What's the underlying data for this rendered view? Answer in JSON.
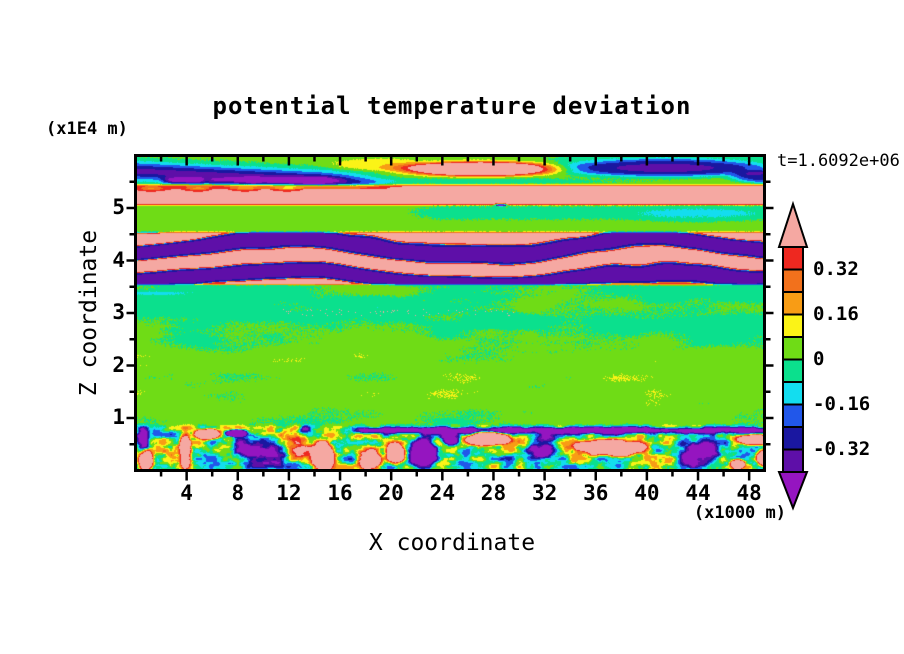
{
  "chart_data": {
    "type": "heatmap",
    "title": "potential temperature deviation",
    "time_label": "t=1.6092e+06",
    "xlabel": "X coordinate",
    "ylabel": "Z coordinate",
    "x_unit_label": "(x1000 m)",
    "y_unit_label": "(x1E4 m)",
    "x_range": [
      0,
      49.2
    ],
    "z_range": [
      0,
      6
    ],
    "x_ticks": [
      4,
      8,
      12,
      16,
      20,
      24,
      28,
      32,
      36,
      40,
      44,
      48
    ],
    "x_minor_ticks": [
      2,
      6,
      10,
      14,
      18,
      22,
      26,
      30,
      34,
      38,
      42,
      46
    ],
    "z_ticks": [
      1,
      2,
      3,
      4,
      5
    ],
    "z_minor_ticks": [
      0.5,
      1.5,
      2.5,
      3.5,
      4.5,
      5.5
    ],
    "levels": [
      -0.4,
      -0.32,
      -0.24,
      -0.16,
      -0.08,
      0,
      0.08,
      0.16,
      0.24,
      0.32,
      0.4
    ],
    "colorbar_labels": [
      "0.32",
      "0.16",
      "0",
      "-0.16",
      "-0.32"
    ],
    "palette": [
      "#9515C0",
      "#5E0FA8",
      "#1A17A0",
      "#2157EA",
      "#13DDEF",
      "#0BE08D",
      "#6FDC16",
      "#FBF317",
      "#F89C15",
      "#F2711C",
      "#EE2820",
      "#F5A8A2"
    ],
    "field": {
      "seed": 13,
      "dither_amp": 0.03,
      "dither_gate": 0.1,
      "mid": {
        "base": 0.0,
        "amp": 0.13,
        "sx": 0.15,
        "sz": 3.0,
        "bias_pos": {
          "amp": 0.04,
          "zc": 1.8,
          "zw": 0.8
        },
        "bias_neg": {
          "amp": -0.025,
          "zc": 3.0,
          "zw": 0.45
        },
        "specks": {
          "z": [
            2.94,
            3.08
          ],
          "x": [
            11,
            30
          ],
          "p": 0.03,
          "amp": 0.5
        },
        "cyan_streak": {
          "amp": -0.11,
          "zc": 3.38,
          "zw": 0.04,
          "x_end": 7
        }
      },
      "wave": {
        "env": [
          3.52,
          3.58,
          4.52,
          4.58
        ],
        "center": 3.875,
        "period": 0.58,
        "amp_pos": 0.55,
        "amp_neg": 0.385,
        "sharp": 0.2,
        "bias": -0.15,
        "wob1": [
          1.3,
          0.24,
          1.8
        ],
        "wob2": [
          0.55,
          0.13,
          4.0
        ],
        "wob3": [
          0.45,
          0.09,
          3.0
        ],
        "wobn": 3.4,
        "green_above": 0.035
      },
      "green": {
        "base": 0.035,
        "teal": {
          "amp": -0.08,
          "x0": 19,
          "x1": 25,
          "zc": 4.93,
          "zw": 0.14
        }
      },
      "pink": {
        "amp": 0.425,
        "env": [
          5.055,
          5.1,
          5.42,
          5.5
        ],
        "mod": {
          "amp": 0.24,
          "zc": 5.39,
          "zw": 0.05,
          "x0": 11,
          "x1": 15,
          "osc": 1.7
        }
      },
      "top": {
        "base": 0.03,
        "ridge": {
          "amp": -0.38,
          "zc0": 5.73,
          "tilt": -0.012,
          "zw": 0.18,
          "x0": 14,
          "x1": 22
        },
        "spots": {
          "amp": -0.28,
          "zc": 5.55,
          "zw": 0.06,
          "x": [
            1.5,
            3,
            14,
            17
          ],
          "nscale": 1.1
        },
        "lens": {
          "amp": -0.09,
          "cx": 26,
          "cz": 5.53,
          "rx": 12,
          "rz": 0.07
        },
        "blobs": [
          [
            0.68,
            27.0,
            5.77,
            6.0,
            0.14
          ],
          [
            0.11,
            19.0,
            5.85,
            4.0,
            0.12
          ],
          [
            -0.37,
            41.5,
            5.79,
            8.5,
            0.17
          ],
          [
            -0.3,
            49.3,
            5.62,
            2.5,
            0.12
          ],
          [
            -0.55,
            28.6,
            5.08,
            0.5,
            0.028
          ],
          [
            -0.06,
            44.0,
            4.9,
            5.0,
            0.15
          ]
        ],
        "edge_teal": {
          "amp": -0.055,
          "x0": 28,
          "x1": 36,
          "z0": 5.88,
          "z1": 5.97
        }
      },
      "bottom": {
        "blend": [
          0.78,
          0.9
        ],
        "amp": 0.33,
        "sx": 0.95,
        "sz": 6.5,
        "sharp": 1.3,
        "streak": {
          "amp": -0.65,
          "zc": 0.74,
          "zw": 0.06,
          "x0": 15,
          "x1": 19
        },
        "blobs": [
          [
            0.8,
            0.7,
            0.15,
            0.6,
            0.2
          ],
          [
            -0.45,
            0.4,
            0.55,
            0.5,
            0.25
          ],
          [
            0.7,
            3.8,
            0.35,
            0.5,
            0.35
          ],
          [
            0.95,
            5.6,
            0.67,
            1.0,
            0.1
          ],
          [
            -0.95,
            7.8,
            0.69,
            0.8,
            0.07
          ],
          [
            -0.5,
            9.8,
            0.35,
            2.3,
            0.3
          ],
          [
            0.42,
            12.4,
            0.48,
            1.4,
            0.25
          ],
          [
            0.85,
            14.6,
            0.25,
            0.9,
            0.3
          ],
          [
            -0.3,
            13.2,
            0.7,
            0.6,
            0.12
          ],
          [
            0.65,
            18.3,
            0.2,
            0.9,
            0.22
          ],
          [
            0.9,
            20.3,
            0.3,
            0.75,
            0.2
          ],
          [
            -0.85,
            22.5,
            0.3,
            1.1,
            0.28
          ],
          [
            -0.6,
            24.6,
            0.6,
            0.8,
            0.14
          ],
          [
            1.0,
            27.6,
            0.58,
            1.7,
            0.13
          ],
          [
            -0.45,
            31.8,
            0.45,
            1.2,
            0.25
          ],
          [
            0.95,
            37.2,
            0.42,
            2.7,
            0.15
          ],
          [
            0.5,
            38.0,
            0.33,
            1.0,
            0.11
          ],
          [
            -0.6,
            44.3,
            0.28,
            1.6,
            0.25
          ],
          [
            0.75,
            47.2,
            0.1,
            0.6,
            0.1
          ],
          [
            0.85,
            49.3,
            0.2,
            0.6,
            0.16
          ],
          [
            0.85,
            48.4,
            0.56,
            1.2,
            0.1
          ]
        ]
      }
    }
  }
}
